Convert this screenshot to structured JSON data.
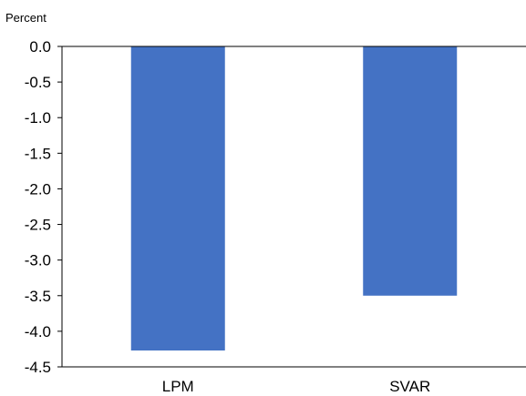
{
  "chart_data": {
    "type": "bar",
    "ylabel": "Percent",
    "categories": [
      "LPM",
      "SVAR"
    ],
    "values": [
      -4.27,
      -3.5
    ],
    "ylim": [
      -4.5,
      0.0
    ],
    "yticks": [
      "0.0",
      "-0.5",
      "-1.0",
      "-1.5",
      "-2.0",
      "-2.5",
      "-3.0",
      "-3.5",
      "-4.0",
      "-4.5"
    ],
    "bar_color": "#4472C4",
    "grid": false,
    "legend": "none"
  }
}
